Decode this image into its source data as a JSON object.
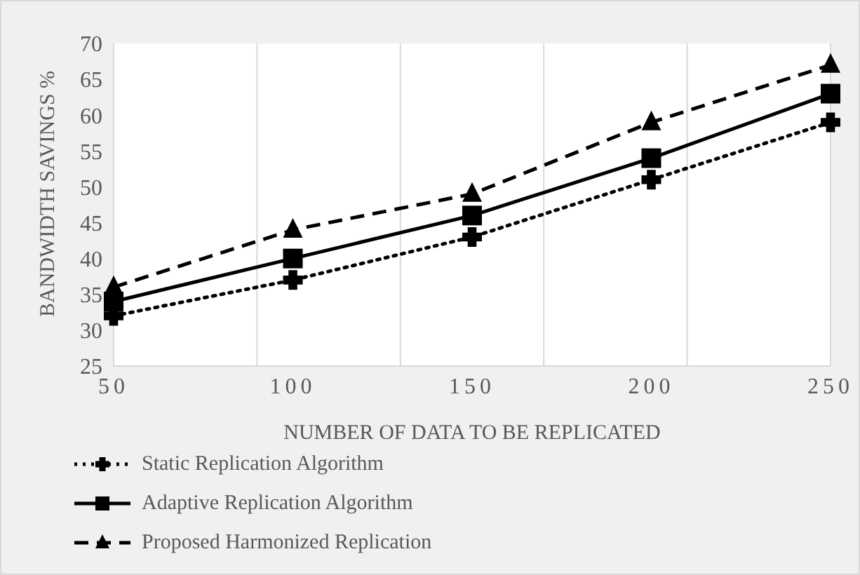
{
  "chart_data": {
    "type": "line",
    "xlabel": "NUMBER OF DATA TO BE REPLICATED",
    "ylabel": "BANDWIDTH  SAVINGS %",
    "categories": [
      "50",
      "100",
      "150",
      "200",
      "250"
    ],
    "ylim": [
      25,
      70
    ],
    "yticks": [
      25,
      30,
      35,
      40,
      45,
      50,
      55,
      60,
      65,
      70
    ],
    "grid": "x",
    "legend": "bottom",
    "series": [
      {
        "name": "Static Replication Algorithm",
        "color": "#000000",
        "marker": "cross",
        "line_style": "dotted",
        "values": [
          32,
          37,
          43,
          51,
          59
        ]
      },
      {
        "name": "Adaptive Replication Algorithm",
        "color": "#000000",
        "marker": "square",
        "line_style": "solid",
        "values": [
          34,
          40,
          46,
          54,
          63
        ]
      },
      {
        "name": "Proposed Harmonized Replication",
        "color": "#000000",
        "marker": "triangle",
        "line_style": "dashed",
        "values": [
          36,
          44,
          49,
          59,
          67
        ]
      }
    ]
  }
}
